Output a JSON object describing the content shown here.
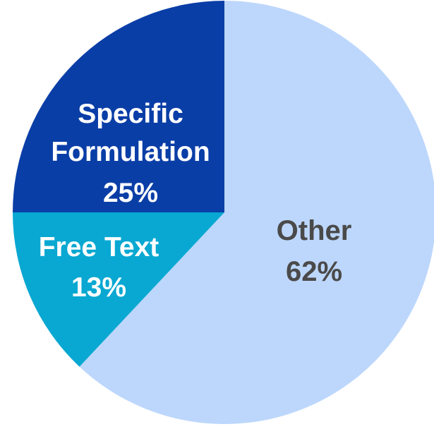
{
  "chart_data": {
    "type": "pie",
    "title": "",
    "slices": [
      {
        "label": "Other",
        "value": 62,
        "value_label": "62%",
        "color": "#bdd7fc",
        "text_color": "#4a4a4a"
      },
      {
        "label": "Free Text",
        "value": 13,
        "value_label": "13%",
        "color": "#09a8d2",
        "text_color": "#ffffff"
      },
      {
        "label": "Specific Formulation",
        "value": 25,
        "value_label": "25%",
        "color": "#0a3ea7",
        "text_color": "#ffffff"
      }
    ],
    "legend": "none",
    "start_angle": "top, clockwise"
  }
}
